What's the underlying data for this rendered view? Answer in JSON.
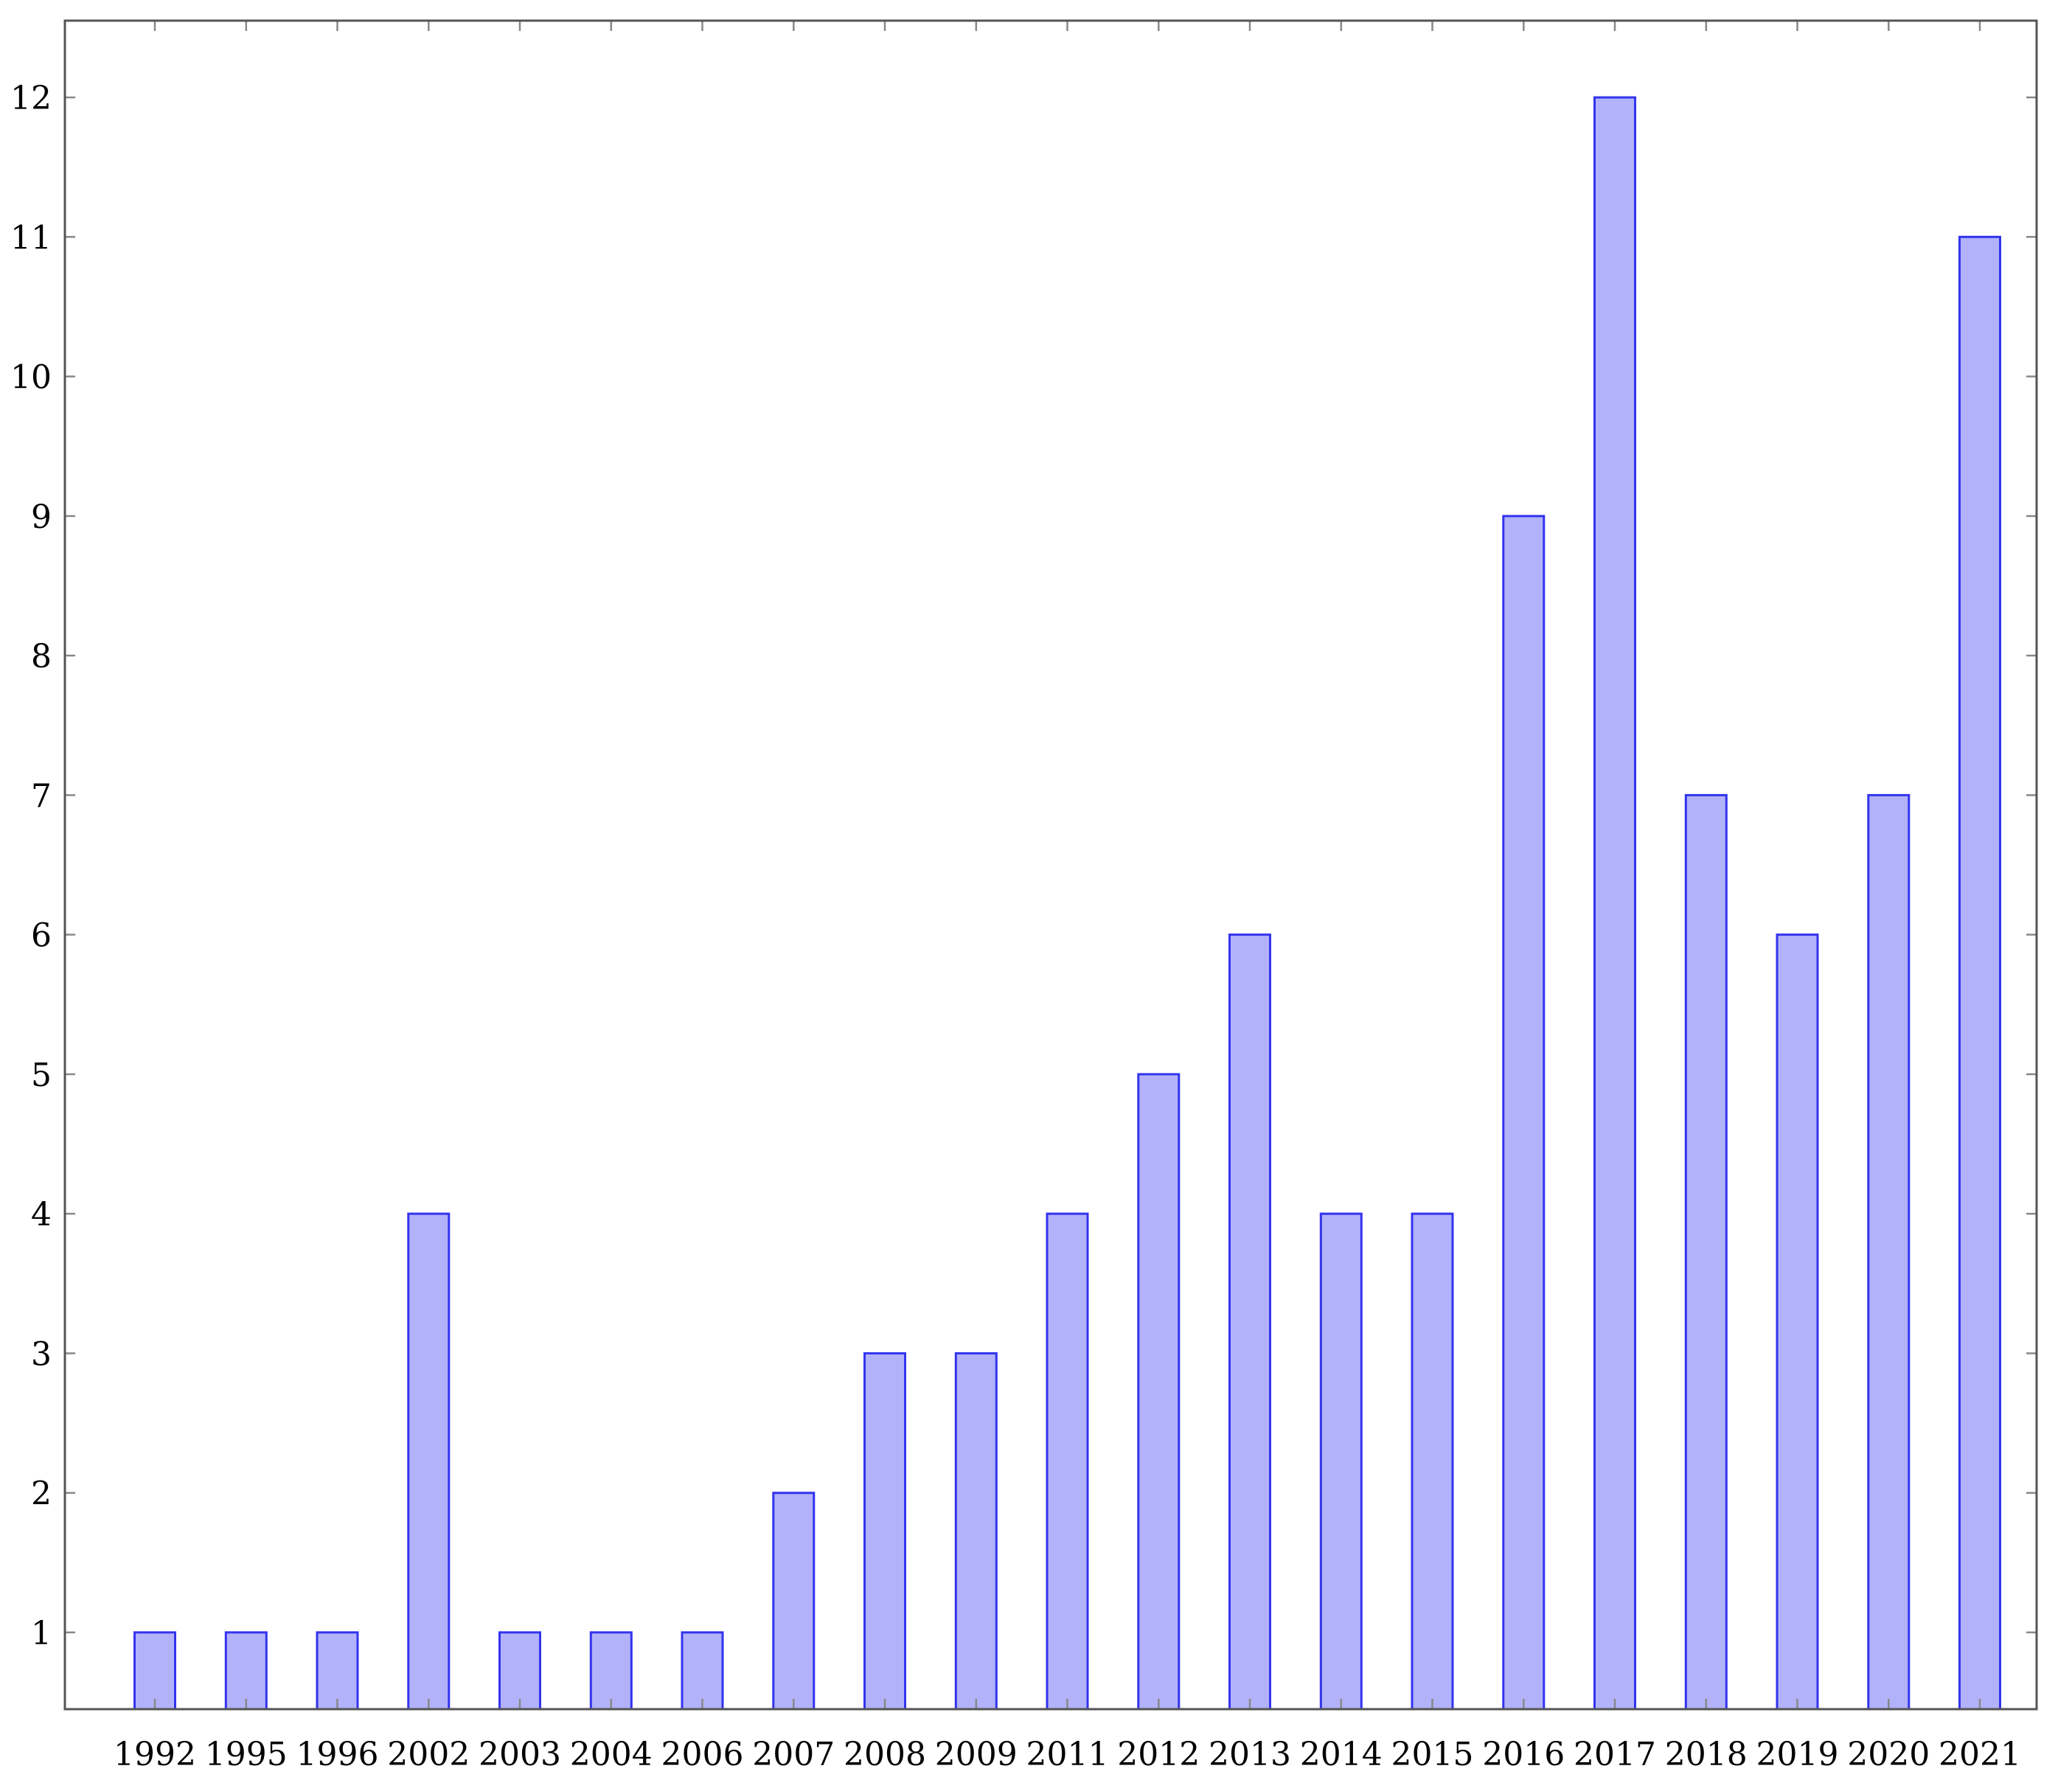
{
  "chart_data": {
    "type": "bar",
    "title": "",
    "xlabel": "",
    "ylabel": "",
    "categories": [
      "1992",
      "1995",
      "1996",
      "2002",
      "2003",
      "2004",
      "2006",
      "2007",
      "2008",
      "2009",
      "2011",
      "2012",
      "2013",
      "2014",
      "2015",
      "2016",
      "2017",
      "2018",
      "2019",
      "2020",
      "2021"
    ],
    "values": [
      1,
      1,
      1,
      4,
      1,
      1,
      1,
      2,
      3,
      3,
      4,
      5,
      6,
      4,
      4,
      9,
      12,
      7,
      6,
      7,
      11
    ],
    "ylim": [
      0.45,
      12.55
    ],
    "yticks": [
      1,
      2,
      3,
      4,
      5,
      6,
      7,
      8,
      9,
      10,
      11,
      12
    ],
    "grid": false,
    "legend": "none",
    "colors": {
      "bar_fill": "#b2b2fa",
      "bar_stroke": "#3333ee"
    }
  }
}
